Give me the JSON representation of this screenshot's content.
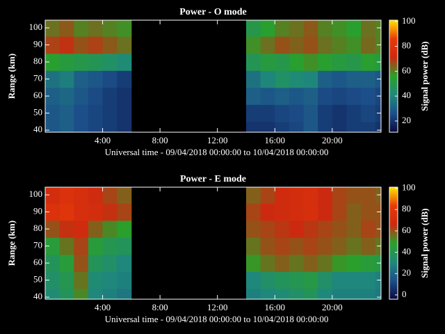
{
  "chart_data": [
    {
      "type": "heatmap",
      "title": "Power - O mode",
      "xlabel": "Universal time - 09/04/2018 00:00:00 to 10/04/2018 00:00:00",
      "ylabel": "Range (km)",
      "colorbar_label": "Signal power (dB)",
      "x": [
        0.5,
        1.5,
        2.5,
        3.5,
        4.5,
        5.5,
        6.5,
        7.5,
        8.5,
        9.5,
        10.5,
        11.5,
        12.5,
        13.5,
        14.5,
        15.5,
        16.5,
        17.5,
        18.5,
        19.5,
        20.5,
        21.5,
        22.5,
        23.5
      ],
      "y": [
        40,
        50,
        60,
        70,
        80,
        90,
        100
      ],
      "z": [
        [
          28,
          30,
          26,
          24,
          22,
          20,
          null,
          null,
          null,
          null,
          null,
          null,
          null,
          null,
          20,
          20,
          22,
          24,
          28,
          22,
          20,
          22,
          22,
          20
        ],
        [
          28,
          30,
          26,
          24,
          22,
          20,
          null,
          null,
          null,
          null,
          null,
          null,
          null,
          null,
          22,
          22,
          24,
          25,
          28,
          22,
          20,
          22,
          24,
          22
        ],
        [
          30,
          32,
          28,
          25,
          22,
          20,
          null,
          null,
          null,
          null,
          null,
          null,
          null,
          null,
          30,
          28,
          30,
          28,
          30,
          25,
          24,
          25,
          26,
          24
        ],
        [
          35,
          38,
          30,
          28,
          25,
          22,
          null,
          null,
          null,
          null,
          null,
          null,
          null,
          null,
          35,
          40,
          45,
          42,
          40,
          30,
          28,
          30,
          30,
          28
        ],
        [
          55,
          52,
          50,
          48,
          45,
          42,
          null,
          null,
          null,
          null,
          null,
          null,
          null,
          null,
          48,
          52,
          50,
          55,
          58,
          55,
          52,
          50,
          55,
          52
        ],
        [
          68,
          70,
          66,
          68,
          65,
          62,
          null,
          null,
          null,
          null,
          null,
          null,
          null,
          null,
          58,
          62,
          66,
          64,
          66,
          62,
          60,
          58,
          63,
          60
        ],
        [
          62,
          65,
          60,
          62,
          60,
          58,
          null,
          null,
          null,
          null,
          null,
          null,
          null,
          null,
          50,
          55,
          60,
          62,
          65,
          60,
          58,
          55,
          62,
          60
        ]
      ],
      "xlim": [
        0,
        23.4
      ],
      "xticks": [
        {
          "value": 4,
          "label": "4:00"
        },
        {
          "value": 8,
          "label": "8:00"
        },
        {
          "value": 12,
          "label": "12:00"
        },
        {
          "value": 16,
          "label": "16:00"
        },
        {
          "value": 20,
          "label": "20:00"
        }
      ],
      "ylim": [
        38.8,
        104.5
      ],
      "yticks": [
        40,
        50,
        60,
        70,
        80,
        90,
        100
      ],
      "clim": [
        11,
        101
      ],
      "cticks": [
        20,
        40,
        60,
        80,
        100
      ],
      "colormap": [
        "#0a0a40",
        "#1c4f8a",
        "#1f8a7a",
        "#2aa02a",
        "#cc2a10",
        "#e83a08",
        "#ffe600"
      ]
    },
    {
      "type": "heatmap",
      "title": "Power - E mode",
      "xlabel": "Universal time - 09/04/2018 00:00:00 to 10/04/2018 00:00:00",
      "ylabel": "Range (km)",
      "colorbar_label": "Signal power (dB)",
      "x": [
        0.5,
        1.5,
        2.5,
        3.5,
        4.5,
        5.5,
        6.5,
        7.5,
        8.5,
        9.5,
        10.5,
        11.5,
        12.5,
        13.5,
        14.5,
        15.5,
        16.5,
        17.5,
        18.5,
        19.5,
        20.5,
        21.5,
        22.5,
        23.5
      ],
      "y": [
        40,
        50,
        60,
        70,
        80,
        90,
        100
      ],
      "z": [
        [
          32,
          38,
          52,
          30,
          28,
          25,
          null,
          null,
          null,
          null,
          null,
          null,
          null,
          null,
          28,
          30,
          32,
          35,
          38,
          30,
          28,
          28,
          28,
          26
        ],
        [
          35,
          40,
          55,
          32,
          30,
          28,
          null,
          null,
          null,
          null,
          null,
          null,
          null,
          null,
          30,
          35,
          38,
          40,
          42,
          35,
          30,
          30,
          30,
          28
        ],
        [
          38,
          45,
          60,
          38,
          35,
          30,
          null,
          null,
          null,
          null,
          null,
          null,
          null,
          null,
          50,
          55,
          58,
          55,
          58,
          55,
          50,
          48,
          45,
          42
        ],
        [
          45,
          55,
          62,
          45,
          40,
          38,
          null,
          null,
          null,
          null,
          null,
          null,
          null,
          null,
          55,
          60,
          62,
          60,
          62,
          60,
          58,
          55,
          58,
          55
        ],
        [
          60,
          65,
          68,
          58,
          52,
          48,
          null,
          null,
          null,
          null,
          null,
          null,
          null,
          null,
          60,
          62,
          64,
          66,
          64,
          62,
          60,
          58,
          62,
          60
        ],
        [
          75,
          78,
          72,
          70,
          65,
          62,
          null,
          null,
          null,
          null,
          null,
          null,
          null,
          null,
          62,
          66,
          68,
          70,
          72,
          66,
          62,
          58,
          60,
          60
        ],
        [
          70,
          75,
          72,
          68,
          62,
          58,
          null,
          null,
          null,
          null,
          null,
          null,
          null,
          null,
          58,
          62,
          68,
          70,
          72,
          66,
          62,
          60,
          60,
          58
        ]
      ],
      "xlim": [
        0,
        23.4
      ],
      "xticks": [
        {
          "value": 4,
          "label": "4:00"
        },
        {
          "value": 8,
          "label": "8:00"
        },
        {
          "value": 12,
          "label": "12:00"
        },
        {
          "value": 16,
          "label": "16:00"
        },
        {
          "value": 20,
          "label": "20:00"
        }
      ],
      "ylim": [
        38.8,
        104.5
      ],
      "yticks": [
        40,
        50,
        60,
        70,
        80,
        90,
        100
      ],
      "clim": [
        -4,
        101
      ],
      "cticks": [
        0,
        20,
        40,
        60,
        80,
        100
      ],
      "colormap": [
        "#0a0a40",
        "#1c4f8a",
        "#1f8a7a",
        "#2aa02a",
        "#cc2a10",
        "#e83a08",
        "#ffe600"
      ]
    }
  ]
}
